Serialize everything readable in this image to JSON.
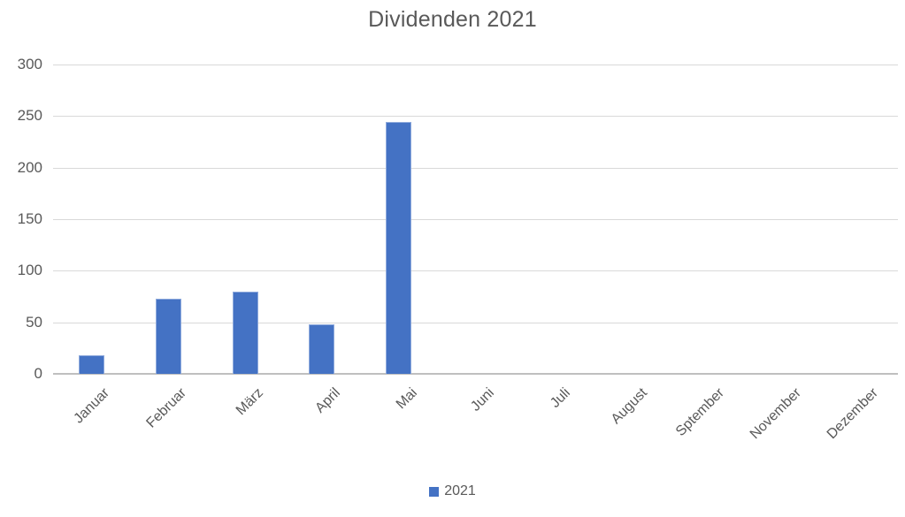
{
  "chart_data": {
    "type": "bar",
    "title": "Dividenden 2021",
    "categories": [
      "Januar",
      "Februar",
      "März",
      "April",
      "Mai",
      "Juni",
      "Juli",
      "August",
      "Sptember",
      "November",
      "Dezember"
    ],
    "series": [
      {
        "name": "2021",
        "values": [
          18,
          73,
          80,
          48,
          244,
          0,
          0,
          0,
          0,
          0,
          0
        ],
        "color": "#4472C4"
      }
    ],
    "xlabel": "",
    "ylabel": "",
    "ylim": [
      0,
      300
    ],
    "yticks": [
      0,
      50,
      100,
      150,
      200,
      250,
      300
    ],
    "grid": true,
    "legend_position": "bottom",
    "x_label_rotation_deg": 45
  },
  "legend": {
    "items": [
      {
        "label": "2021",
        "color": "#4472C4"
      }
    ]
  },
  "colors": {
    "bar_fill": "#4472C4",
    "bar_border": "#8FAADC",
    "gridline": "#D9D9D9",
    "axis_line": "#BFBFBF",
    "text": "#595959",
    "background": "#FFFFFF"
  }
}
